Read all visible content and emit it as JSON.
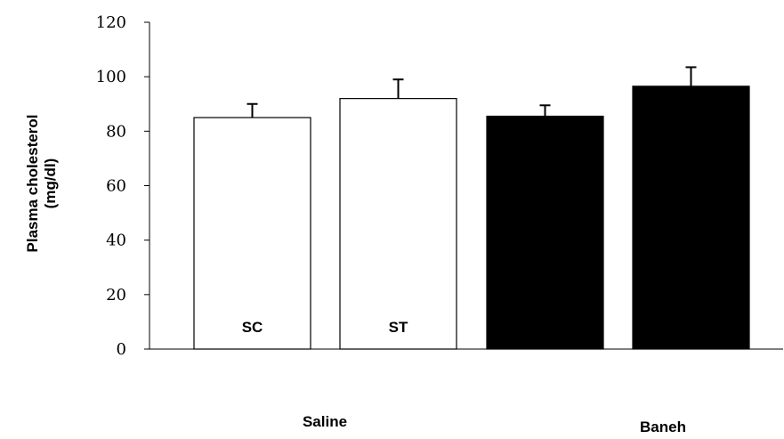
{
  "chart_data": {
    "type": "bar",
    "title": "",
    "ylabel_lines": [
      "Plasma cholesterol",
      "(mg/dl)"
    ],
    "xlabel": "",
    "ylim": [
      0,
      120
    ],
    "yticks": [
      0,
      20,
      40,
      60,
      80,
      100,
      120
    ],
    "grid": false,
    "legend": "none",
    "bars": [
      {
        "label": "SC",
        "value": 85,
        "error": 5,
        "fill": "#ffffff",
        "group": "Saline"
      },
      {
        "label": "ST",
        "value": 92,
        "error": 7,
        "fill": "#ffffff",
        "group": "Saline"
      },
      {
        "label": "",
        "value": 85.5,
        "error": 4,
        "fill": "#000000",
        "group": "Baneh"
      },
      {
        "label": "",
        "value": 96.5,
        "error": 7,
        "fill": "#000000",
        "group": "Baneh"
      }
    ],
    "groups": [
      "Saline",
      "Baneh"
    ],
    "colors": {
      "white_bar": "#ffffff",
      "black_bar": "#000000",
      "axis": "#000000"
    }
  }
}
